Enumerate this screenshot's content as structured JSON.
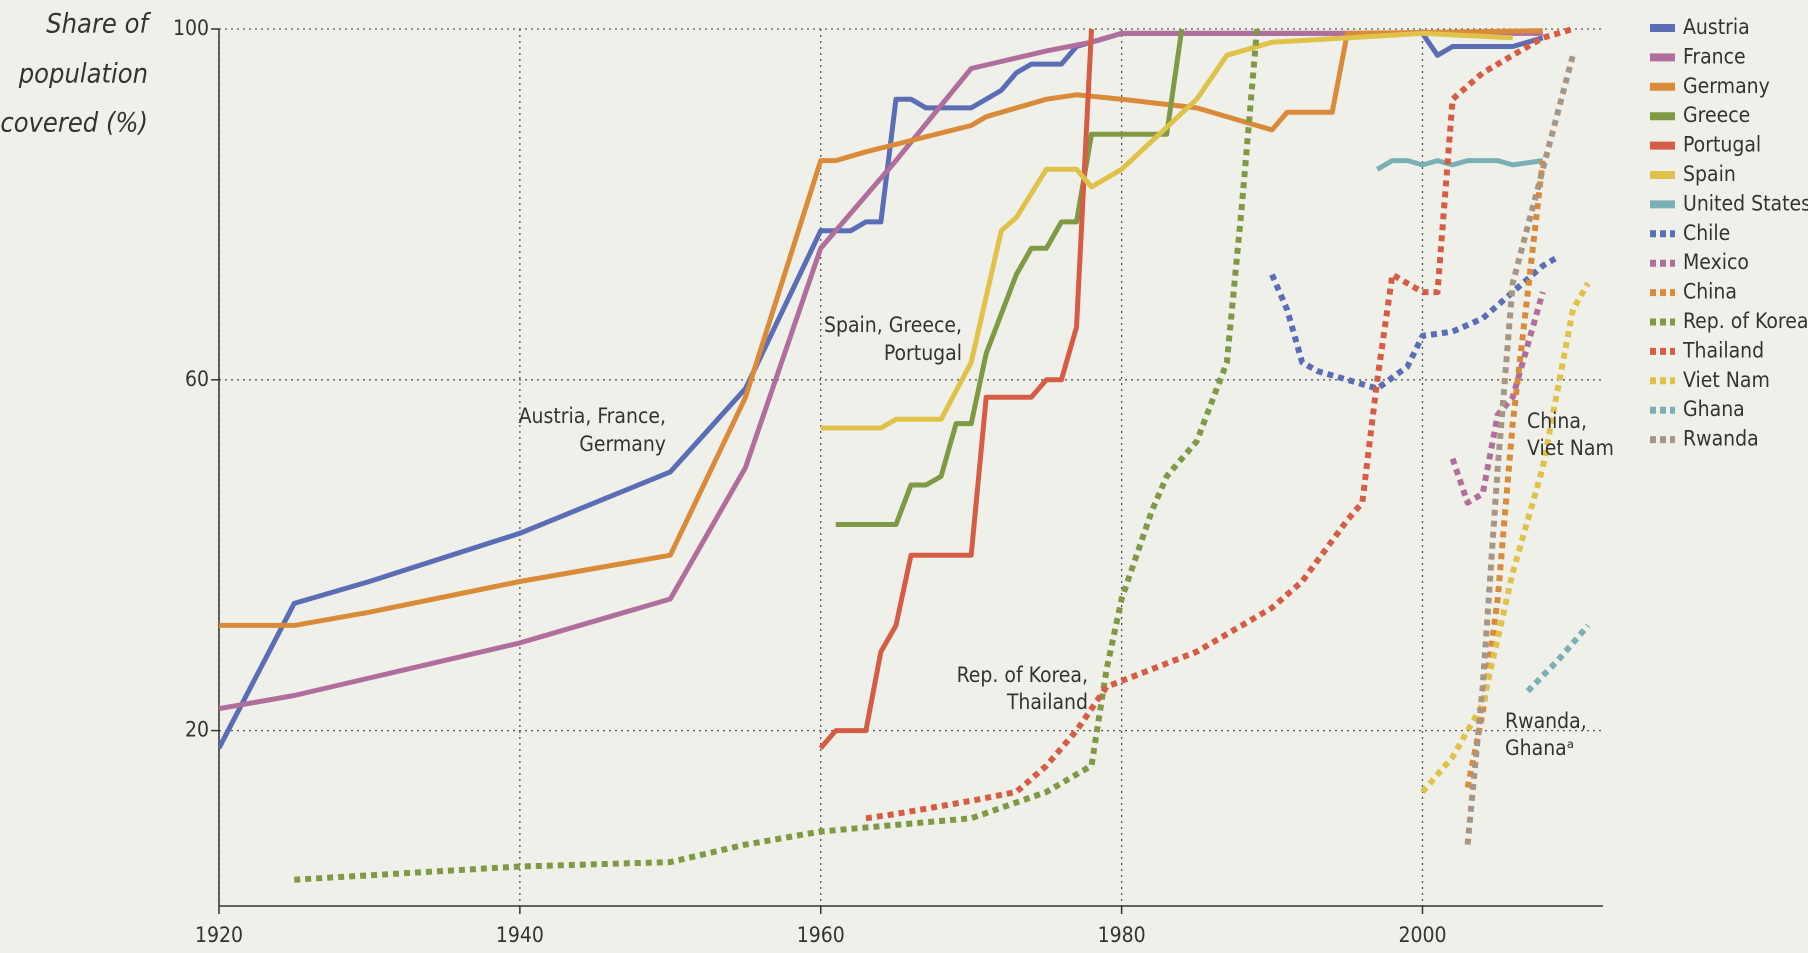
{
  "chart_data": {
    "type": "line",
    "ylabel": [
      "Share of",
      "population",
      "covered (%)"
    ],
    "xlim": [
      1920,
      2012
    ],
    "xticks": [
      1920,
      1940,
      1960,
      1980,
      2000
    ],
    "ylim": [
      0,
      100
    ],
    "yticks": [
      20,
      60,
      100
    ],
    "grid": true,
    "legend": "right",
    "annotations": [
      {
        "lines": [
          "Austria, France,",
          "Germany"
        ]
      },
      {
        "lines": [
          "Spain,  Greece,",
          "Portugal"
        ]
      },
      {
        "lines": [
          "Rep. of Korea,",
          "Thailand"
        ]
      },
      {
        "lines": [
          "China,",
          "Viet Nam"
        ]
      },
      {
        "lines": [
          "Rwanda,",
          "Ghanaᵃ"
        ]
      }
    ],
    "series": [
      {
        "name": "Austria",
        "color": "#5b6db5",
        "dashed": false,
        "x": [
          1920,
          1925,
          1930,
          1940,
          1950,
          1955,
          1960,
          1962,
          1963,
          1964,
          1965,
          1966,
          1967,
          1970,
          1972,
          1973,
          1974,
          1976,
          1977,
          1979,
          1980,
          2000,
          2001,
          2002,
          2006,
          2008
        ],
        "values": [
          18,
          34.5,
          37,
          42.5,
          49.5,
          59,
          77,
          77,
          78,
          78,
          92,
          92,
          91,
          91,
          93,
          95,
          96,
          96,
          98,
          99,
          99.5,
          99.5,
          97,
          98,
          98,
          99
        ]
      },
      {
        "name": "France",
        "color": "#b06e9c",
        "dashed": false,
        "x": [
          1920,
          1925,
          1930,
          1940,
          1950,
          1955,
          1960,
          1965,
          1970,
          1975,
          1978,
          1980,
          2008
        ],
        "values": [
          22.5,
          24,
          26,
          30,
          35,
          50,
          75,
          85,
          95.5,
          97.5,
          98.5,
          99.5,
          99.5
        ]
      },
      {
        "name": "Germany",
        "color": "#d98b3a",
        "dashed": false,
        "x": [
          1920,
          1925,
          1930,
          1940,
          1950,
          1955,
          1960,
          1961,
          1963,
          1970,
          1971,
          1975,
          1977,
          1980,
          1985,
          1990,
          1991,
          1994,
          1995,
          2008
        ],
        "values": [
          32,
          32,
          33.5,
          37,
          40,
          58,
          85,
          85,
          86,
          89,
          90,
          92,
          92.5,
          92,
          91,
          88.5,
          90.5,
          90.5,
          99.5,
          99.8
        ]
      },
      {
        "name": "Greece",
        "color": "#7f9944",
        "dashed": false,
        "x": [
          1961,
          1965,
          1966,
          1967,
          1968,
          1969,
          1970,
          1971,
          1973,
          1974,
          1975,
          1976,
          1977,
          1978,
          1983,
          1984
        ],
        "values": [
          43.5,
          43.5,
          48,
          48,
          49,
          55,
          55,
          63,
          72,
          75,
          75,
          78,
          78,
          88,
          88,
          100
        ]
      },
      {
        "name": "Portugal",
        "color": "#d65d45",
        "dashed": false,
        "x": [
          1960,
          1961,
          1963,
          1964,
          1965,
          1966,
          1970,
          1971,
          1974,
          1975,
          1976,
          1977,
          1978
        ],
        "values": [
          18,
          20,
          20,
          29,
          32,
          40,
          40,
          58,
          58,
          60,
          60,
          66,
          100
        ]
      },
      {
        "name": "Spain",
        "color": "#e0c24a",
        "dashed": false,
        "x": [
          1960,
          1964,
          1965,
          1968,
          1970,
          1972,
          1973,
          1975,
          1977,
          1978,
          1980,
          1985,
          1987,
          1990,
          2000,
          2006
        ],
        "values": [
          54.5,
          54.5,
          55.5,
          55.5,
          62,
          77,
          78.5,
          84,
          84,
          82,
          84,
          92,
          97,
          98.5,
          99.5,
          99
        ]
      },
      {
        "name": "United States",
        "color": "#7aafb4",
        "dashed": false,
        "x": [
          1997,
          1998,
          1999,
          2000,
          2001,
          2002,
          2003,
          2005,
          2006,
          2008
        ],
        "values": [
          84,
          85,
          85,
          84.5,
          85,
          84.5,
          85,
          85,
          84.5,
          85
        ]
      },
      {
        "name": "Chile",
        "color": "#5b6db5",
        "dashed": true,
        "x": [
          1990,
          1991,
          1992,
          1993,
          1995,
          1997,
          1999,
          2000,
          2002,
          2004,
          2006,
          2008,
          2009
        ],
        "values": [
          72,
          68,
          62,
          61,
          60,
          59,
          61.5,
          65,
          65.5,
          67,
          70,
          73,
          74
        ]
      },
      {
        "name": "Mexico",
        "color": "#b06e9c",
        "dashed": true,
        "x": [
          2002,
          2003,
          2004,
          2005,
          2006,
          2007,
          2008
        ],
        "values": [
          51,
          46,
          47,
          56,
          58,
          64,
          70
        ]
      },
      {
        "name": "China",
        "color": "#d98b3a",
        "dashed": true,
        "x": [
          2003,
          2004,
          2005,
          2006,
          2007,
          2008
        ],
        "values": [
          13.5,
          22,
          35,
          55,
          70,
          85
        ]
      },
      {
        "name": "Rep. of Korea",
        "color": "#7f9944",
        "dashed": true,
        "x": [
          1925,
          1930,
          1940,
          1950,
          1955,
          1960,
          1970,
          1975,
          1978,
          1979,
          1980,
          1982,
          1983,
          1985,
          1987,
          1988,
          1989
        ],
        "values": [
          3,
          3.5,
          4.5,
          5,
          7,
          8.5,
          10,
          13,
          16,
          27,
          35,
          45,
          49,
          53,
          62,
          80,
          100
        ]
      },
      {
        "name": "Thailand",
        "color": "#d65d45",
        "dashed": true,
        "x": [
          1963,
          1965,
          1970,
          1973,
          1975,
          1977,
          1979,
          1985,
          1990,
          1992,
          1995,
          1996,
          1997,
          1998,
          2000,
          2001,
          2002,
          2004,
          2006,
          2008,
          2010
        ],
        "values": [
          10,
          10.5,
          12,
          13,
          16,
          20,
          25,
          29,
          34,
          37,
          44,
          46,
          60,
          72,
          70,
          70,
          92,
          95,
          97,
          99,
          100
        ]
      },
      {
        "name": "Viet Nam",
        "color": "#e0c24a",
        "dashed": true,
        "x": [
          2000,
          2002,
          2004,
          2006,
          2008,
          2010,
          2011
        ],
        "values": [
          13,
          17,
          23,
          38,
          50,
          68,
          71
        ]
      },
      {
        "name": "Ghana",
        "color": "#7aafb4",
        "dashed": true,
        "x": [
          2007,
          2009,
          2011
        ],
        "values": [
          24.5,
          28,
          32
        ]
      },
      {
        "name": "Rwanda",
        "color": "#a89685",
        "dashed": true,
        "x": [
          2003,
          2004,
          2005,
          2006,
          2008,
          2010
        ],
        "values": [
          7,
          25,
          50,
          71,
          84,
          97
        ]
      }
    ]
  }
}
